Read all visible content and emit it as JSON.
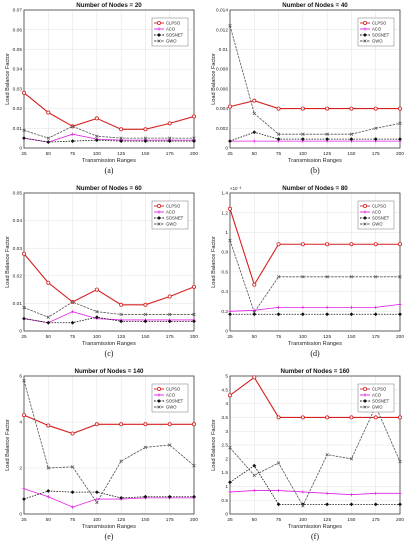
{
  "series_colors": {
    "CLPSO": "#d62020",
    "ACO": "#e020e0",
    "SOSNET": "#111111",
    "GWO": "#555555"
  },
  "chart_data": [
    {
      "type": "line",
      "caption": "(a)",
      "title": "Number of Nodes = 20",
      "xlabel": "Transmission Ranges",
      "ylabel": "Load Balance Factor",
      "x": [
        25,
        50,
        75,
        100,
        125,
        150,
        175,
        200
      ],
      "xticks": [
        "25",
        "50",
        "75",
        "100",
        "125",
        "150",
        "175",
        "200"
      ],
      "ylim": [
        0,
        0.07
      ],
      "yticks": [
        "0",
        "0.01",
        "0.02",
        "0.03",
        "0.04",
        "0.05",
        "0.06",
        "0.07"
      ],
      "yscale_label": "",
      "legend": "top-right",
      "series": [
        {
          "name": "CLPSO",
          "values": [
            0.028,
            0.018,
            0.011,
            0.015,
            0.0095,
            0.0095,
            0.0125,
            0.016
          ]
        },
        {
          "name": "ACO",
          "values": [
            0.005,
            0.003,
            0.007,
            0.0045,
            0.004,
            0.004,
            0.004,
            0.004
          ]
        },
        {
          "name": "SOSNET",
          "values": [
            0.005,
            0.003,
            0.0035,
            0.004,
            0.0035,
            0.0035,
            0.0035,
            0.0035
          ]
        },
        {
          "name": "GWO",
          "values": [
            0.009,
            0.005,
            0.011,
            0.006,
            0.005,
            0.005,
            0.005,
            0.005
          ]
        }
      ]
    },
    {
      "type": "line",
      "caption": "(b)",
      "title": "Number of Nodes = 40",
      "xlabel": "Transmission Ranges",
      "ylabel": "Load Balance Factor",
      "x": [
        25,
        50,
        75,
        100,
        125,
        150,
        175,
        200
      ],
      "xticks": [
        "25",
        "50",
        "75",
        "100",
        "125",
        "150",
        "175",
        "200"
      ],
      "ylim": [
        0,
        0.014
      ],
      "yticks": [
        "0",
        "0.002",
        "0.004",
        "0.006",
        "0.008",
        "0.01",
        "0.012",
        "0.014"
      ],
      "yscale_label": "",
      "legend": "top-right",
      "series": [
        {
          "name": "CLPSO",
          "values": [
            0.0042,
            0.0048,
            0.004,
            0.004,
            0.004,
            0.004,
            0.004,
            0.004
          ]
        },
        {
          "name": "ACO",
          "values": [
            0.0007,
            0.0007,
            0.0007,
            0.0007,
            0.0007,
            0.0007,
            0.0007,
            0.0007
          ]
        },
        {
          "name": "SOSNET",
          "values": [
            0.0007,
            0.0016,
            0.0009,
            0.0009,
            0.0009,
            0.0009,
            0.0009,
            0.0009
          ]
        },
        {
          "name": "GWO",
          "values": [
            0.0124,
            0.0035,
            0.0014,
            0.0014,
            0.0014,
            0.0014,
            0.002,
            0.0025
          ]
        }
      ]
    },
    {
      "type": "line",
      "caption": "(c)",
      "title": "Number of Nodes = 60",
      "xlabel": "Transmission Ranges",
      "ylabel": "Load Balance Factor",
      "x": [
        25,
        50,
        75,
        100,
        125,
        150,
        175,
        200
      ],
      "xticks": [
        "25",
        "50",
        "75",
        "100",
        "125",
        "150",
        "175",
        "200"
      ],
      "ylim": [
        0,
        0.05
      ],
      "yticks": [
        "0",
        "0.01",
        "0.02",
        "0.03",
        "0.04",
        "0.05"
      ],
      "yscale_label": "",
      "legend": "top-right",
      "series": [
        {
          "name": "CLPSO",
          "values": [
            0.028,
            0.0175,
            0.0105,
            0.015,
            0.0095,
            0.0095,
            0.0125,
            0.016
          ]
        },
        {
          "name": "ACO",
          "values": [
            0.0045,
            0.003,
            0.007,
            0.0045,
            0.004,
            0.004,
            0.004,
            0.004
          ]
        },
        {
          "name": "SOSNET",
          "values": [
            0.0045,
            0.003,
            0.003,
            0.005,
            0.0035,
            0.0035,
            0.0035,
            0.0035
          ]
        },
        {
          "name": "GWO",
          "values": [
            0.0085,
            0.005,
            0.0105,
            0.007,
            0.006,
            0.006,
            0.006,
            0.006
          ]
        }
      ]
    },
    {
      "type": "line",
      "caption": "(d)",
      "title": "Number of Nodes = 80",
      "xlabel": "Transmission Ranges",
      "ylabel": "Load Balance Factor",
      "x": [
        25,
        50,
        75,
        100,
        125,
        150,
        175,
        200
      ],
      "xticks": [
        "25",
        "50",
        "75",
        "100",
        "125",
        "150",
        "175",
        "200"
      ],
      "ylim": [
        0,
        1.4
      ],
      "yticks": [
        "0",
        "0.2",
        "0.4",
        "0.6",
        "0.8",
        "1",
        "1.2",
        "1.4"
      ],
      "yscale_label": "×10⁻³",
      "legend": "top-right",
      "series": [
        {
          "name": "CLPSO",
          "values": [
            1.24,
            0.47,
            0.88,
            0.88,
            0.88,
            0.88,
            0.88,
            0.88
          ]
        },
        {
          "name": "ACO",
          "values": [
            0.2,
            0.21,
            0.24,
            0.24,
            0.24,
            0.24,
            0.24,
            0.27
          ]
        },
        {
          "name": "SOSNET",
          "values": [
            0.17,
            0.17,
            0.17,
            0.17,
            0.17,
            0.17,
            0.17,
            0.17
          ]
        },
        {
          "name": "GWO",
          "values": [
            0.92,
            0.19,
            0.55,
            0.55,
            0.55,
            0.55,
            0.55,
            0.55
          ]
        }
      ]
    },
    {
      "type": "line",
      "caption": "(e)",
      "title": "Number of Nodes = 140",
      "xlabel": "Transmission Ranges",
      "ylabel": "Load Balance Factor",
      "x": [
        25,
        50,
        75,
        100,
        125,
        150,
        175,
        200
      ],
      "xticks": [
        "25",
        "50",
        "75",
        "100",
        "125",
        "150",
        "175",
        "200"
      ],
      "ylim": [
        0,
        6
      ],
      "yticks": [
        "0",
        "2",
        "4",
        "6"
      ],
      "yscale_label": "",
      "legend": "top-right",
      "series": [
        {
          "name": "CLPSO",
          "values": [
            4.3,
            3.85,
            3.5,
            3.9,
            3.9,
            3.9,
            3.9,
            3.9
          ]
        },
        {
          "name": "ACO",
          "values": [
            1.1,
            0.75,
            0.3,
            0.65,
            0.65,
            0.7,
            0.7,
            0.7
          ]
        },
        {
          "name": "SOSNET",
          "values": [
            0.65,
            1.0,
            0.95,
            0.95,
            0.7,
            0.75,
            0.75,
            0.75
          ]
        },
        {
          "name": "GWO",
          "values": [
            5.8,
            2.0,
            2.05,
            0.5,
            2.3,
            2.9,
            3.0,
            2.1
          ]
        }
      ]
    },
    {
      "type": "line",
      "caption": "(f)",
      "title": "Number of Nodes = 160",
      "xlabel": "Transmission Ranges",
      "ylabel": "Load Balance Factor",
      "x": [
        25,
        50,
        75,
        100,
        125,
        150,
        175,
        200
      ],
      "xticks": [
        "25",
        "50",
        "75",
        "100",
        "125",
        "150",
        "175",
        "200"
      ],
      "ylim": [
        0,
        5
      ],
      "yticks": [
        "0",
        "0.5",
        "1",
        "1.5",
        "2",
        "2.5",
        "3",
        "3.5",
        "4",
        "4.5",
        "5"
      ],
      "yscale_label": "",
      "legend": "top-right",
      "series": [
        {
          "name": "CLPSO",
          "values": [
            4.3,
            4.95,
            3.5,
            3.5,
            3.5,
            3.5,
            3.5,
            3.5
          ]
        },
        {
          "name": "ACO",
          "values": [
            0.8,
            0.85,
            0.85,
            0.8,
            0.75,
            0.7,
            0.75,
            0.75
          ]
        },
        {
          "name": "SOSNET",
          "values": [
            1.15,
            1.75,
            0.35,
            0.35,
            0.35,
            0.35,
            0.35,
            0.35
          ]
        },
        {
          "name": "GWO",
          "values": [
            2.4,
            1.4,
            1.85,
            0.3,
            2.15,
            2.0,
            3.9,
            1.9
          ]
        }
      ]
    }
  ]
}
